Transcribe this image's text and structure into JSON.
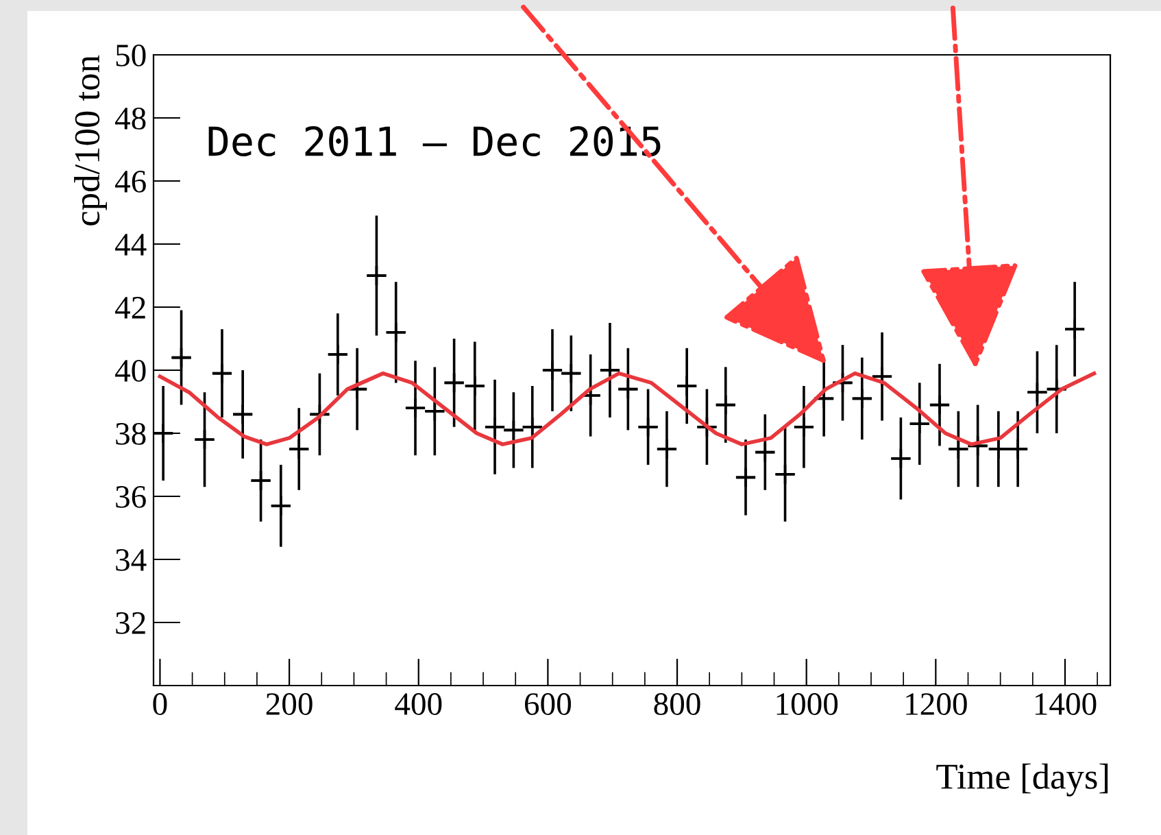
{
  "chart_data": {
    "type": "scatter",
    "xlabel": "Time [days]",
    "ylabel": "cpd/100 ton",
    "annotations": [
      "Dec 2011 – Dec 2015"
    ],
    "xlim": [
      -10,
      1470
    ],
    "xticks": [
      0,
      200,
      400,
      600,
      800,
      1000,
      1200,
      1400
    ],
    "ylim": [
      30,
      50
    ],
    "yticks": [
      32,
      34,
      36,
      38,
      40,
      42,
      44,
      46,
      48,
      50
    ],
    "grid": false,
    "legend": false,
    "series": [
      {
        "color": "#000000",
        "marker": "cross",
        "x": [
          5,
          33,
          69,
          96,
          128,
          156,
          187,
          215,
          247,
          275,
          305,
          335,
          365,
          395,
          425,
          455,
          487,
          518,
          547,
          576,
          607,
          636,
          666,
          696,
          724,
          755,
          784,
          815,
          846,
          875,
          906,
          936,
          967,
          996,
          1027,
          1056,
          1086,
          1117,
          1146,
          1175,
          1206,
          1235,
          1265,
          1297,
          1327,
          1357,
          1387,
          1415
        ],
        "values": [
          38.0,
          40.4,
          37.8,
          39.9,
          38.6,
          36.5,
          35.7,
          37.5,
          38.6,
          40.5,
          39.4,
          43.0,
          41.2,
          38.8,
          38.7,
          39.6,
          39.5,
          38.2,
          38.1,
          38.2,
          40.0,
          39.9,
          39.2,
          40.0,
          39.4,
          38.2,
          37.5,
          39.5,
          38.2,
          38.9,
          36.6,
          37.4,
          36.7,
          38.2,
          39.1,
          39.6,
          39.1,
          39.8,
          37.2,
          38.3,
          38.9,
          37.5,
          37.6,
          37.5,
          37.5,
          39.3,
          39.4,
          41.3
        ],
        "errors": [
          1.5,
          1.5,
          1.5,
          1.4,
          1.4,
          1.3,
          1.3,
          1.3,
          1.3,
          1.3,
          1.3,
          1.9,
          1.6,
          1.5,
          1.4,
          1.4,
          1.4,
          1.5,
          1.2,
          1.3,
          1.3,
          1.2,
          1.3,
          1.5,
          1.3,
          1.2,
          1.2,
          1.2,
          1.2,
          1.2,
          1.2,
          1.2,
          1.5,
          1.3,
          1.2,
          1.2,
          1.3,
          1.4,
          1.3,
          1.3,
          1.3,
          1.2,
          1.3,
          1.2,
          1.2,
          1.3,
          1.4,
          1.5
        ],
        "xerrors": [
          15,
          15,
          15,
          15,
          15,
          15,
          15,
          15,
          15,
          15,
          15,
          15,
          15,
          15,
          15,
          15,
          15,
          15,
          15,
          15,
          15,
          15,
          15,
          15,
          15,
          15,
          15,
          15,
          15,
          15,
          15,
          15,
          15,
          15,
          15,
          15,
          15,
          15,
          15,
          15,
          15,
          15,
          15,
          15,
          15,
          15,
          15,
          15
        ]
      },
      {
        "type": "line",
        "color": "#e8383d",
        "line_style": "solid",
        "marker": "none",
        "x": [
          0,
          45,
          90,
          130,
          165,
          200,
          245,
          290,
          345,
          390,
          440,
          490,
          530,
          575,
          620,
          665,
          710,
          760,
          810,
          860,
          900,
          945,
          990,
          1030,
          1075,
          1120,
          1170,
          1215,
          1255,
          1300,
          1345,
          1395,
          1445
        ],
        "values": [
          39.8,
          39.3,
          38.5,
          37.9,
          37.65,
          37.85,
          38.5,
          39.4,
          39.9,
          39.6,
          38.8,
          38.0,
          37.65,
          37.85,
          38.6,
          39.4,
          39.9,
          39.6,
          38.8,
          38.0,
          37.65,
          37.85,
          38.6,
          39.4,
          39.9,
          39.6,
          38.8,
          38.0,
          37.65,
          37.85,
          38.6,
          39.4,
          39.9
        ]
      }
    ]
  }
}
